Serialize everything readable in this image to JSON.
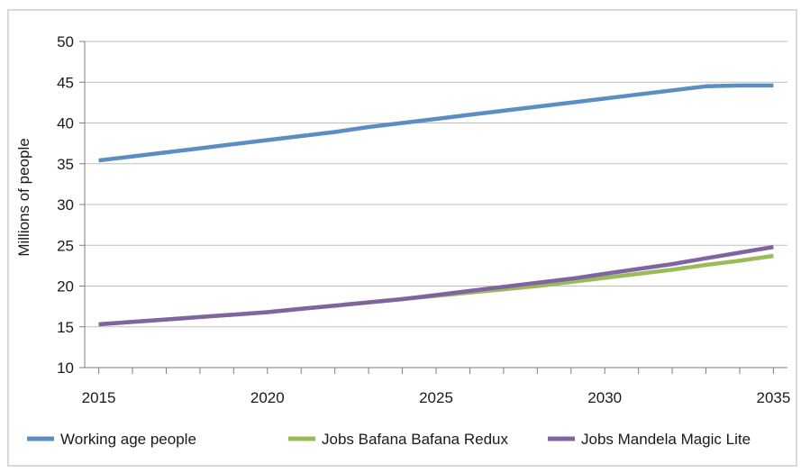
{
  "chart_data": {
    "type": "line",
    "title": "",
    "xlabel": "",
    "ylabel": "Millions of people",
    "xlim": [
      2015,
      2035
    ],
    "ylim": [
      10,
      50
    ],
    "x_ticks": [
      2015,
      2020,
      2025,
      2030,
      2035
    ],
    "y_ticks": [
      10,
      15,
      20,
      25,
      30,
      35,
      40,
      45,
      50
    ],
    "grid": true,
    "legend_position": "bottom",
    "series": [
      {
        "name": "Working age people",
        "color": "#5b8ec2",
        "x": [
          2015,
          2016,
          2017,
          2018,
          2019,
          2020,
          2021,
          2022,
          2023,
          2024,
          2025,
          2026,
          2027,
          2028,
          2029,
          2030,
          2031,
          2032,
          2033,
          2034,
          2035
        ],
        "values": [
          35.4,
          35.9,
          36.4,
          36.9,
          37.4,
          37.9,
          38.4,
          38.9,
          39.5,
          40.0,
          40.5,
          41.0,
          41.5,
          42.0,
          42.5,
          43.0,
          43.5,
          44.0,
          44.5,
          44.6,
          44.6
        ]
      },
      {
        "name": "Jobs Bafana Bafana Redux",
        "color": "#9bbb59",
        "x": [
          2015,
          2016,
          2017,
          2018,
          2019,
          2020,
          2021,
          2022,
          2023,
          2024,
          2025,
          2026,
          2027,
          2028,
          2029,
          2030,
          2031,
          2032,
          2033,
          2034,
          2035
        ],
        "values": [
          15.3,
          15.6,
          15.9,
          16.2,
          16.5,
          16.8,
          17.2,
          17.6,
          18.0,
          18.4,
          18.8,
          19.2,
          19.6,
          20.0,
          20.5,
          21.0,
          21.5,
          22.0,
          22.6,
          23.1,
          23.7
        ]
      },
      {
        "name": "Jobs Mandela Magic Lite",
        "color": "#8064a2",
        "x": [
          2015,
          2016,
          2017,
          2018,
          2019,
          2020,
          2021,
          2022,
          2023,
          2024,
          2025,
          2026,
          2027,
          2028,
          2029,
          2030,
          2031,
          2032,
          2033,
          2034,
          2035
        ],
        "values": [
          15.3,
          15.6,
          15.9,
          16.2,
          16.5,
          16.8,
          17.2,
          17.6,
          18.0,
          18.4,
          18.9,
          19.4,
          19.9,
          20.4,
          20.9,
          21.5,
          22.1,
          22.7,
          23.4,
          24.1,
          24.8
        ]
      }
    ]
  }
}
